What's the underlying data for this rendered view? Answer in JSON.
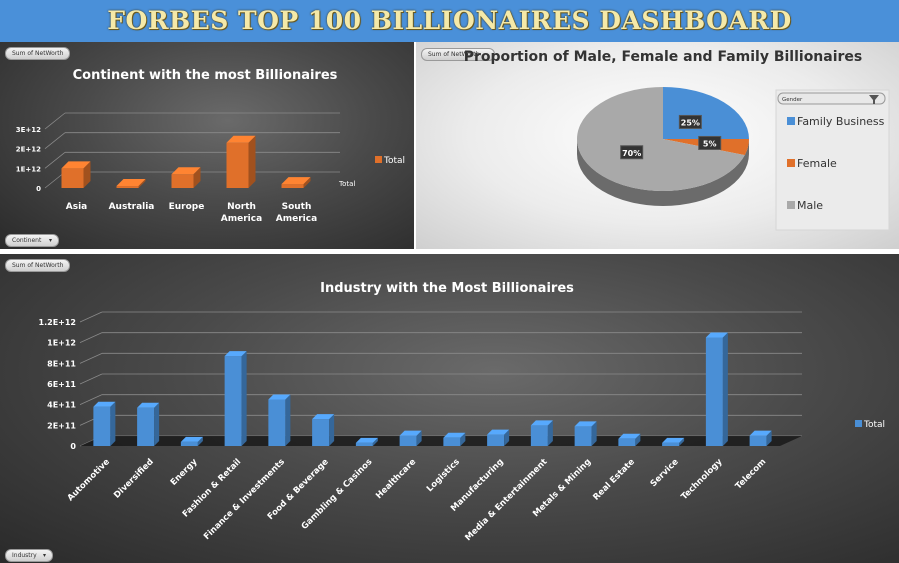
{
  "dashboard": {
    "title": "FORBES TOP 100 BILLIONAIRES DASHBOARD"
  },
  "continent_panel": {
    "field_button": "Sum of NetWorth",
    "filter_button": "Continent",
    "filter_arrow": "▾",
    "legend_label": "Total",
    "axis_end_label": "Total"
  },
  "gender_panel": {
    "field_button": "Sum of NetWorth",
    "slicer_title": "Gender",
    "legend": [
      "Family Business",
      "Female",
      "Male"
    ],
    "pct_labels": [
      "25%",
      "5%",
      "70%"
    ]
  },
  "industry_panel": {
    "field_button": "Sum of NetWorth",
    "filter_button": "Industry",
    "filter_arrow": "▾",
    "legend_label": "Total"
  },
  "colors": {
    "orange": "#e0702a",
    "blue": "#4a8fd6",
    "gray": "#a9a9a9",
    "title_bar": "#4a90d9"
  },
  "chart_data": [
    {
      "type": "bar",
      "title": "Continent with the most Billionaires",
      "categories": [
        "Asia",
        "Australia",
        "Europe",
        "North America",
        "South America"
      ],
      "values": [
        1000000000000.0,
        100000000000.0,
        700000000000.0,
        2300000000000.0,
        200000000000.0
      ],
      "ytick_labels": [
        "0",
        "1E+12",
        "2E+12",
        "3E+12"
      ],
      "ylim": [
        0,
        3000000000000.0
      ],
      "series": [
        {
          "name": "Total",
          "values": [
            1000000000000.0,
            100000000000.0,
            700000000000.0,
            2300000000000.0,
            200000000000.0
          ]
        }
      ],
      "legend": "right",
      "grid": true
    },
    {
      "type": "pie",
      "title": "Proportion of Male, Female  and Family Billionaires",
      "categories": [
        "Family Business",
        "Female",
        "Male"
      ],
      "values": [
        25,
        5,
        70
      ],
      "legend": "right"
    },
    {
      "type": "bar",
      "title": "Industry with the Most Billionaires",
      "categories": [
        "Automotive",
        "Diversified",
        "Energy",
        "Fashion & Retail",
        "Finance & Investments",
        "Food & Beverage",
        "Gambling & Casinos",
        "Healthcare",
        "Logistics",
        "Manufacturing",
        "Media & Entertainment",
        "Metals & Mining",
        "Real Estate",
        "Service",
        "Technology",
        "Telecom"
      ],
      "values": [
        380000000000.0,
        370000000000.0,
        40000000000.0,
        870000000000.0,
        450000000000.0,
        260000000000.0,
        30000000000.0,
        100000000000.0,
        80000000000.0,
        110000000000.0,
        200000000000.0,
        190000000000.0,
        70000000000.0,
        30000000000.0,
        1050000000000.0,
        100000000000.0
      ],
      "ytick_labels": [
        "0",
        "2E+11",
        "4E+11",
        "6E+11",
        "8E+11",
        "1E+12",
        "1.2E+12"
      ],
      "ylim": [
        0,
        1200000000000.0
      ],
      "series": [
        {
          "name": "Total",
          "values": [
            380000000000.0,
            370000000000.0,
            40000000000.0,
            870000000000.0,
            450000000000.0,
            260000000000.0,
            30000000000.0,
            100000000000.0,
            80000000000.0,
            110000000000.0,
            200000000000.0,
            190000000000.0,
            70000000000.0,
            30000000000.0,
            1050000000000.0,
            100000000000.0
          ]
        }
      ],
      "legend": "right",
      "grid": true
    }
  ]
}
